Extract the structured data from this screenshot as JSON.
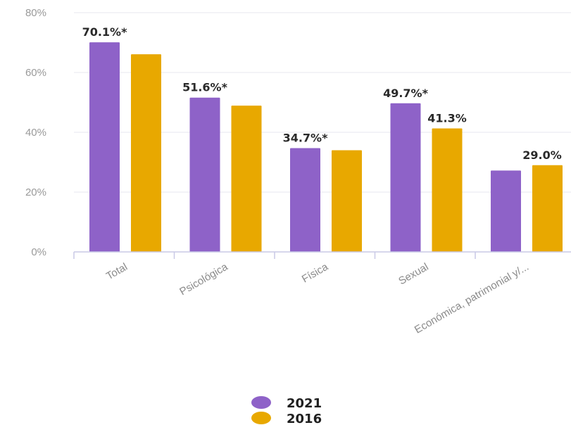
{
  "chart_data": {
    "type": "bar",
    "categories": [
      "Total",
      "Psicológica",
      "Física",
      "Sexual",
      "Económica, patrimonial y/..."
    ],
    "series": [
      {
        "name": "2021",
        "color": "#8e62c8",
        "values": [
          70.1,
          51.6,
          34.7,
          49.7,
          27.2
        ],
        "labels": [
          "70.1%*",
          "51.6%*",
          "34.7%*",
          "49.7%*",
          ""
        ]
      },
      {
        "name": "2016",
        "color": "#e8a800",
        "values": [
          66.1,
          48.9,
          34.0,
          41.3,
          29.0
        ],
        "labels": [
          "",
          "",
          "",
          "41.3%",
          "29.0%"
        ]
      }
    ],
    "yticks": [
      "0%",
      "20%",
      "40%",
      "60%",
      "80%"
    ],
    "ylim": [
      0,
      80
    ],
    "grid": true,
    "legend_position": "bottom-center"
  }
}
